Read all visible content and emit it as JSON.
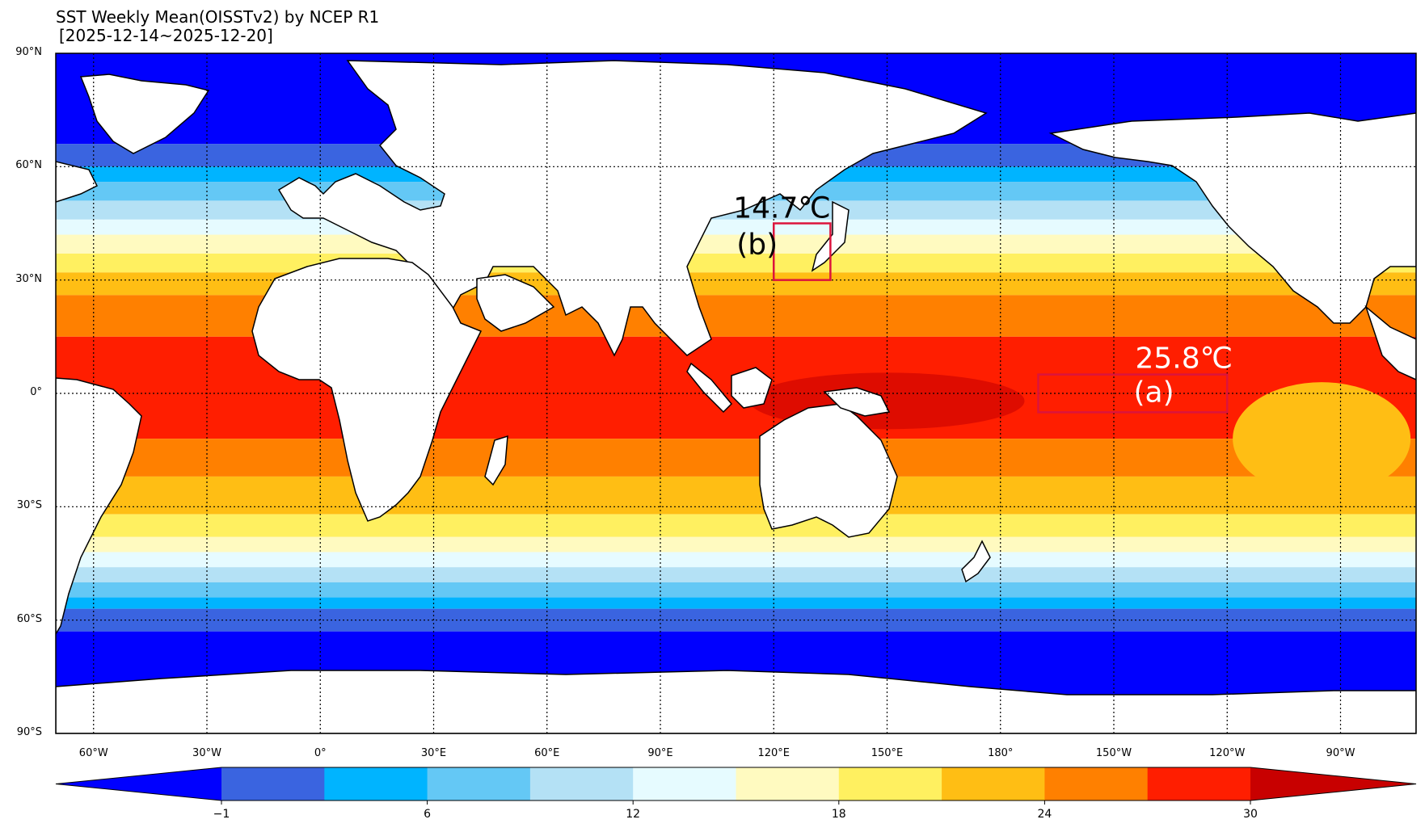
{
  "title": {
    "line1": "SST Weekly Mean(OISSTv2) by NCEP R1",
    "line2": "[2025-12-14~2025-12-20]"
  },
  "lat_labels": [
    "90°N",
    "60°N",
    "30°N",
    "0°",
    "30°S",
    "60°S",
    "90°S"
  ],
  "lon_labels": [
    "60°W",
    "30°W",
    "0°",
    "30°E",
    "60°E",
    "90°E",
    "120°E",
    "150°E",
    "180°",
    "150°W",
    "120°W",
    "90°W"
  ],
  "regions": [
    {
      "id": "a",
      "value_label": "25.8℃",
      "letter": "(a)",
      "lon_range": [
        190,
        240
      ],
      "lat_range": [
        -5,
        5
      ]
    },
    {
      "id": "b",
      "value_label": "14.7℃",
      "letter": "(b)",
      "lon_range": [
        120,
        135
      ],
      "lat_range": [
        30,
        45
      ]
    }
  ],
  "colorbar": {
    "tick_labels": [
      "−1",
      "6",
      "12",
      "18",
      "24",
      "30"
    ],
    "colors": [
      "#0000ff",
      "#3a64e0",
      "#00b4ff",
      "#64c8f5",
      "#b4e1f5",
      "#e6fbff",
      "#fffac0",
      "#fff060",
      "#ffbe14",
      "#ff8000",
      "#ff1e00",
      "#c80000"
    ],
    "extend_low_color": "#0000ff",
    "extend_high_color": "#c80000"
  },
  "colors": {
    "land": "#ffffff",
    "region_box": "#dc143c",
    "label_dark": "#000000",
    "label_light": "#ffffff"
  }
}
